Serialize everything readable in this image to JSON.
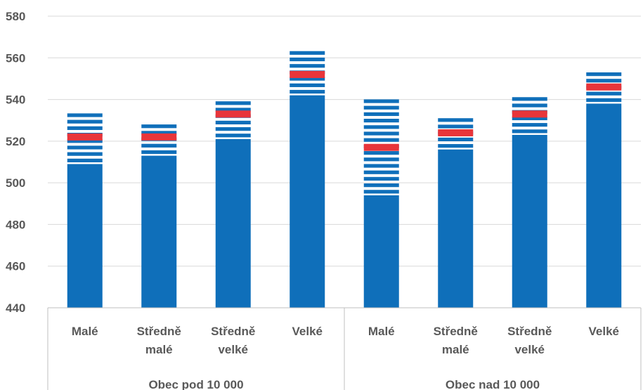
{
  "chart_data": {
    "type": "bar",
    "title": "",
    "xlabel": "",
    "ylabel": "",
    "ylim": [
      440,
      580
    ],
    "y_ticks": [
      440,
      460,
      480,
      500,
      520,
      540,
      560,
      580
    ],
    "grid": true,
    "legend": "none",
    "groups": [
      {
        "label": "Obec pod 10 000",
        "categories": [
          {
            "label": [
              "Malé"
            ],
            "value": 509,
            "range": [
              509,
              535
            ],
            "mean": 522
          },
          {
            "label": [
              "Středně",
              "malé"
            ],
            "value": 513,
            "range": [
              513,
              530
            ],
            "mean": 522
          },
          {
            "label": [
              "Středně",
              "velké"
            ],
            "value": 521,
            "range": [
              521,
              542
            ],
            "mean": 533
          },
          {
            "label": [
              "Velké"
            ],
            "value": 542,
            "range": [
              542,
              564
            ],
            "mean": 552
          }
        ]
      },
      {
        "label": "Obec nad 10 000",
        "categories": [
          {
            "label": [
              "Malé"
            ],
            "value": 494,
            "range": [
              494,
              541
            ],
            "mean": 517
          },
          {
            "label": [
              "Středně",
              "malé"
            ],
            "value": 516,
            "range": [
              516,
              531
            ],
            "mean": 524
          },
          {
            "label": [
              "Středně",
              "velké"
            ],
            "value": 523,
            "range": [
              523,
              542
            ],
            "mean": 533
          },
          {
            "label": [
              "Velké"
            ],
            "value": 538,
            "range": [
              538,
              553
            ],
            "mean": 546
          }
        ]
      }
    ]
  },
  "colors": {
    "bar": "#0f6fba",
    "mean": "#e8353a",
    "grid": "#d9d9d9",
    "axis": "#bfbfbf",
    "text": "#595959"
  }
}
